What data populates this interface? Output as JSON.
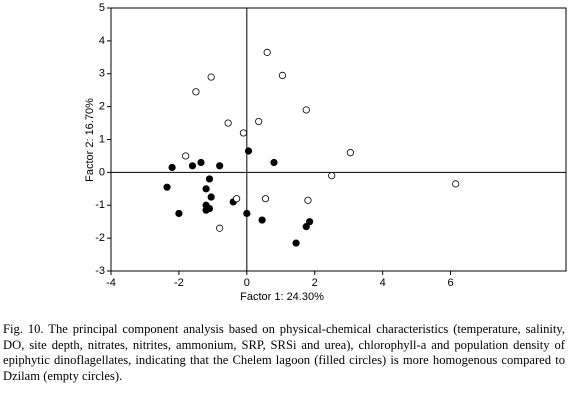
{
  "chart_data": {
    "type": "scatter",
    "xlabel": "Factor 1: 24.30%",
    "ylabel": "Factor 2: 16.70%",
    "xlim": [
      -4,
      9.4
    ],
    "ylim": [
      -3,
      5
    ],
    "xticks": [
      -4,
      -2,
      0,
      2,
      4,
      6
    ],
    "yticks": [
      -3,
      -2,
      -1,
      0,
      1,
      2,
      3,
      4,
      5
    ],
    "zero_lines": true,
    "series": [
      {
        "color": "#000000",
        "filled": true,
        "x": [
          0.05,
          0.8,
          -2.2,
          -1.6,
          -1.35,
          -0.8,
          -1.1,
          -2.35,
          -1.2,
          -0.4,
          -1.05,
          -1.2,
          -1.1,
          -1.2,
          -2.0,
          0.0,
          0.45,
          1.85,
          1.75,
          1.45
        ],
        "values": [
          0.65,
          0.3,
          0.15,
          0.2,
          0.3,
          0.2,
          -0.2,
          -0.45,
          -0.5,
          -0.9,
          -0.75,
          -1.0,
          -1.1,
          -1.15,
          -1.25,
          -1.25,
          -1.45,
          -1.5,
          -1.65,
          -2.15
        ]
      },
      {
        "color": "#000000",
        "filled": false,
        "x": [
          0.6,
          -1.05,
          1.05,
          -1.5,
          1.75,
          -0.55,
          0.35,
          -0.1,
          3.05,
          -1.8,
          2.5,
          6.15,
          -0.3,
          0.55,
          1.8,
          -0.8
        ],
        "values": [
          3.65,
          2.9,
          2.95,
          2.45,
          1.9,
          1.5,
          1.55,
          1.2,
          0.6,
          0.5,
          -0.1,
          -0.35,
          -0.8,
          -0.8,
          -0.85,
          -1.7
        ]
      }
    ]
  },
  "caption": "Fig. 10. The principal component analysis based on physical-chemical characteristics (temperature, salinity, DO, site depth, nitrates, nitrites, ammonium, SRP, SRSi and urea), chlorophyll-a and population density of epiphytic dinoflagellates, indicating that the Chelem lagoon (filled circles) is more homogenous compared to Dzilam (empty circles)."
}
